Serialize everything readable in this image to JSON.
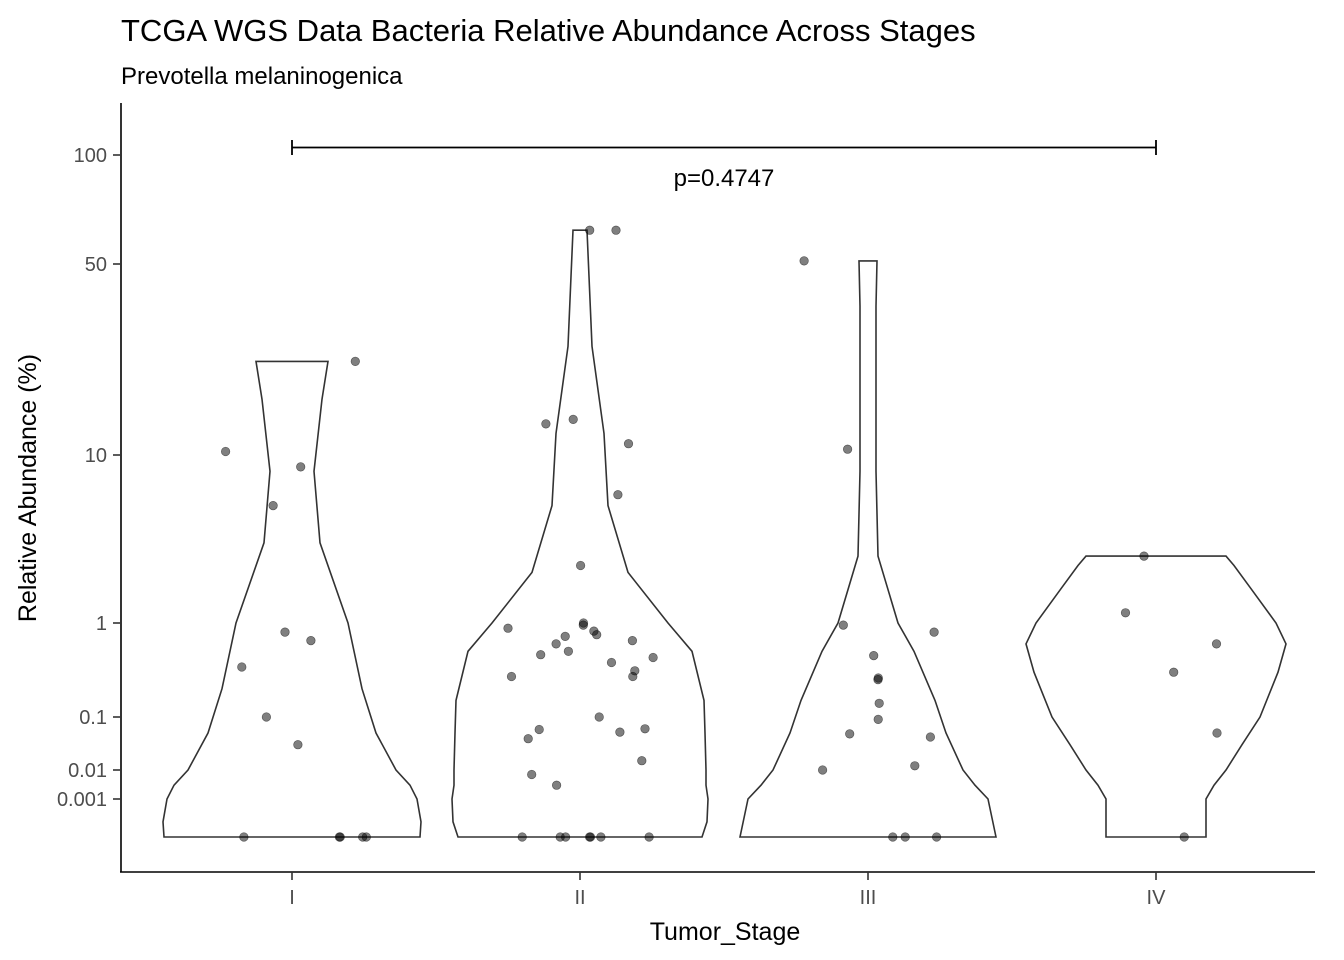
{
  "chart_data": {
    "type": "violin",
    "title": "TCGA WGS Data Bacteria Relative Abundance Across Stages",
    "subtitle": "Prevotella melaninogenica",
    "xlabel": "Tumor_Stage",
    "ylabel": "Relative Abundance (%)",
    "y_scale": "pseudo-log",
    "y_ticks": [
      "0.001",
      "0.01",
      "0.1",
      "1",
      "10",
      "50",
      "100"
    ],
    "y_tick_values": [
      0.001,
      0.01,
      0.1,
      1,
      10,
      50,
      100
    ],
    "ylim": [
      0,
      150
    ],
    "categories": [
      "I",
      "II",
      "III",
      "IV"
    ],
    "grid": false,
    "legend": "none",
    "comparison": {
      "label": "p=0.4747",
      "from": "I",
      "to": "IV"
    },
    "groups": [
      {
        "name": "I",
        "max": 22,
        "points": [
          22,
          10.3,
          8.5,
          5,
          0.8,
          0.65,
          0.34,
          0.1,
          0.03,
          0,
          0,
          0,
          0,
          0
        ]
      },
      {
        "name": "II",
        "max": 62,
        "points": [
          62,
          62,
          13.5,
          13,
          11,
          5.8,
          2.2,
          1.0,
          0.95,
          0.88,
          0.82,
          0.75,
          0.72,
          0.65,
          0.6,
          0.5,
          0.46,
          0.43,
          0.38,
          0.31,
          0.27,
          0.27,
          0.1,
          0.06,
          0.058,
          0.052,
          0.039,
          0.015,
          0.007,
          0.003,
          0,
          0,
          0,
          0,
          0,
          0,
          0
        ]
      },
      {
        "name": "III",
        "max": 51,
        "points": [
          51,
          10.5,
          0.95,
          0.8,
          0.45,
          0.26,
          0.25,
          0.14,
          0.09,
          0.048,
          0.042,
          0.012,
          0.01,
          0,
          0,
          0
        ]
      },
      {
        "name": "IV",
        "max": 2.5,
        "points": [
          2.5,
          1.15,
          0.6,
          0.3,
          0.05,
          0
        ]
      }
    ]
  }
}
